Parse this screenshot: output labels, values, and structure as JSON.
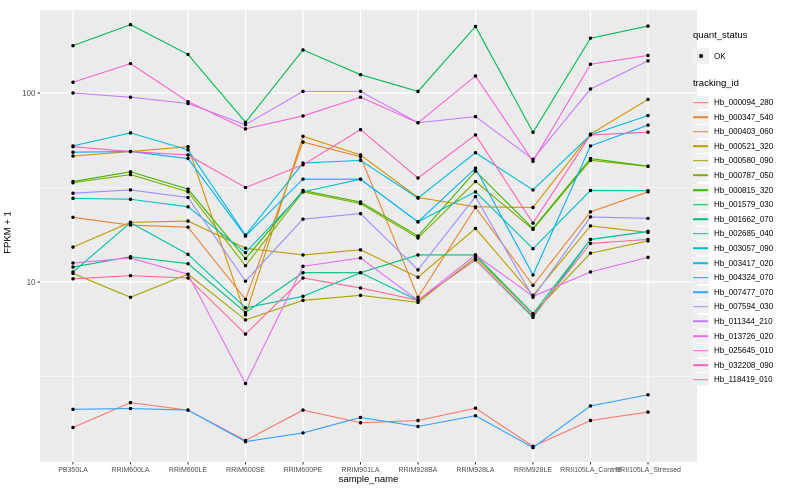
{
  "colors": {
    "panel_bg": "#EBEBEB",
    "grid": "#FFFFFF",
    "axis_text": "#4D4D4D",
    "tick_mark": "#333333",
    "key_bg": "#F0F0F0",
    "point": "#000000"
  },
  "axes": {
    "x_title": "sample_name",
    "y_title": "FPKM + 1",
    "y_tick_labels": [
      "100",
      "10"
    ],
    "y_tick_values": [
      100,
      10
    ]
  },
  "legend": {
    "quant_status_title": "quant_status",
    "quant_status_items": [
      {
        "label": "OK"
      }
    ],
    "tracking_title": "tracking_id"
  },
  "chart_data": {
    "type": "line",
    "title": "",
    "xlabel": "sample_name",
    "ylabel": "FPKM + 1",
    "yscale": "log10",
    "ylim": [
      1.12,
      275
    ],
    "grid": "on",
    "legend_position": "right",
    "x": [
      "PB350LA",
      "RRIM600LA",
      "RRIM600LE",
      "RRIM600SE",
      "RRIM600PE",
      "RRIM901LA",
      "RRIM928BA",
      "RRIM928LA",
      "RRIM928LE",
      "RRII105LA_Control",
      "RRII105LA_Stressed"
    ],
    "series": [
      {
        "name": "Hb_000094_280",
        "color": "#F8766D",
        "values": [
          1.7,
          2.3,
          2.1,
          1.45,
          2.1,
          1.8,
          1.85,
          2.15,
          1.35,
          1.85,
          2.05
        ]
      },
      {
        "name": "Hb_000347_540",
        "color": "#EA8331",
        "values": [
          22,
          20,
          19.5,
          8.1,
          55,
          46,
          8.3,
          24.8,
          9.6,
          23.5,
          30
        ]
      },
      {
        "name": "Hb_000403_060",
        "color": "#D89000",
        "values": [
          46.4,
          49,
          52,
          6.7,
          59,
          47,
          28,
          25,
          24.8,
          60.6,
          92.5
        ]
      },
      {
        "name": "Hb_000521_320",
        "color": "#C09B00",
        "values": [
          15.3,
          20.7,
          21,
          15.1,
          13.9,
          14.8,
          10.6,
          19.2,
          8.5,
          19.8,
          18.3
        ]
      },
      {
        "name": "Hb_000580_090",
        "color": "#A3A500",
        "values": [
          11.1,
          8.3,
          11,
          6.3,
          8,
          8.5,
          7.8,
          13.5,
          6.8,
          14.2,
          16.5
        ]
      },
      {
        "name": "Hb_000787_050",
        "color": "#7CAE00",
        "values": [
          33.5,
          37,
          30,
          12.2,
          30,
          26,
          17.1,
          34,
          19,
          44,
          40.9
        ]
      },
      {
        "name": "Hb_000815_320",
        "color": "#39B600",
        "values": [
          34,
          38.3,
          31,
          13.3,
          30.5,
          26.5,
          17.5,
          38.6,
          19.2,
          45,
          41
        ]
      },
      {
        "name": "Hb_001579_030",
        "color": "#00BB4E",
        "values": [
          178,
          230,
          160,
          70,
          169,
          125,
          102,
          225,
          62,
          195,
          226
        ]
      },
      {
        "name": "Hb_001662_070",
        "color": "#00BF7D",
        "values": [
          12,
          13.6,
          12.5,
          6.9,
          11.2,
          11.2,
          13.9,
          13.9,
          6.8,
          16.8,
          18.5
        ]
      },
      {
        "name": "Hb_002685_040",
        "color": "#00C1A3",
        "values": [
          11.3,
          20.6,
          14,
          7.3,
          8.4,
          11.2,
          8,
          13.1,
          6.5,
          16.8,
          18.5
        ]
      },
      {
        "name": "Hb_003057_090",
        "color": "#00BFC4",
        "values": [
          27.7,
          27.4,
          25,
          14.3,
          30,
          35,
          20.8,
          30,
          15,
          30.5,
          30.4
        ]
      },
      {
        "name": "Hb_003417_020",
        "color": "#00BAE0",
        "values": [
          52.5,
          61.5,
          50,
          17.7,
          42.6,
          44,
          27.8,
          48.3,
          30.7,
          60,
          76
        ]
      },
      {
        "name": "Hb_004324_070",
        "color": "#00B0F6",
        "values": [
          48.6,
          49,
          45,
          17.5,
          35,
          35,
          20.8,
          40,
          10.9,
          52.5,
          67.6
        ]
      },
      {
        "name": "Hb_007477_070",
        "color": "#35A2FF",
        "values": [
          2.12,
          2.14,
          2.1,
          1.43,
          1.59,
          1.92,
          1.72,
          1.96,
          1.33,
          2.21,
          2.53
        ]
      },
      {
        "name": "Hb_007594_030",
        "color": "#9590FF",
        "values": [
          29.5,
          30.7,
          28,
          10.1,
          21.5,
          23,
          11.6,
          28.3,
          8.3,
          22.1,
          21.7
        ]
      },
      {
        "name": "Hb_011344_210",
        "color": "#C77CFF",
        "values": [
          100,
          95,
          88,
          68,
          102,
          102,
          69.6,
          75,
          44.6,
          105,
          148
        ]
      },
      {
        "name": "Hb_013726_020",
        "color": "#E76BF3",
        "values": [
          12.6,
          13.4,
          11,
          2.9,
          12.1,
          13.4,
          8,
          13.9,
          8.4,
          11.3,
          13.5
        ]
      },
      {
        "name": "Hb_025645_010",
        "color": "#FA62DB",
        "values": [
          114,
          143,
          90,
          64.6,
          75.6,
          95,
          69.6,
          123,
          43.5,
          142,
          158
        ]
      },
      {
        "name": "Hb_032208_090",
        "color": "#FF62BC",
        "values": [
          52,
          49,
          47,
          31.6,
          41.7,
          64,
          35.5,
          60,
          20.5,
          60,
          62
        ]
      },
      {
        "name": "Hb_118419_010",
        "color": "#FF6C90",
        "values": [
          10.4,
          10.8,
          10.5,
          5.3,
          10.5,
          9.3,
          8,
          13.1,
          6.6,
          16,
          16.8
        ]
      }
    ]
  }
}
